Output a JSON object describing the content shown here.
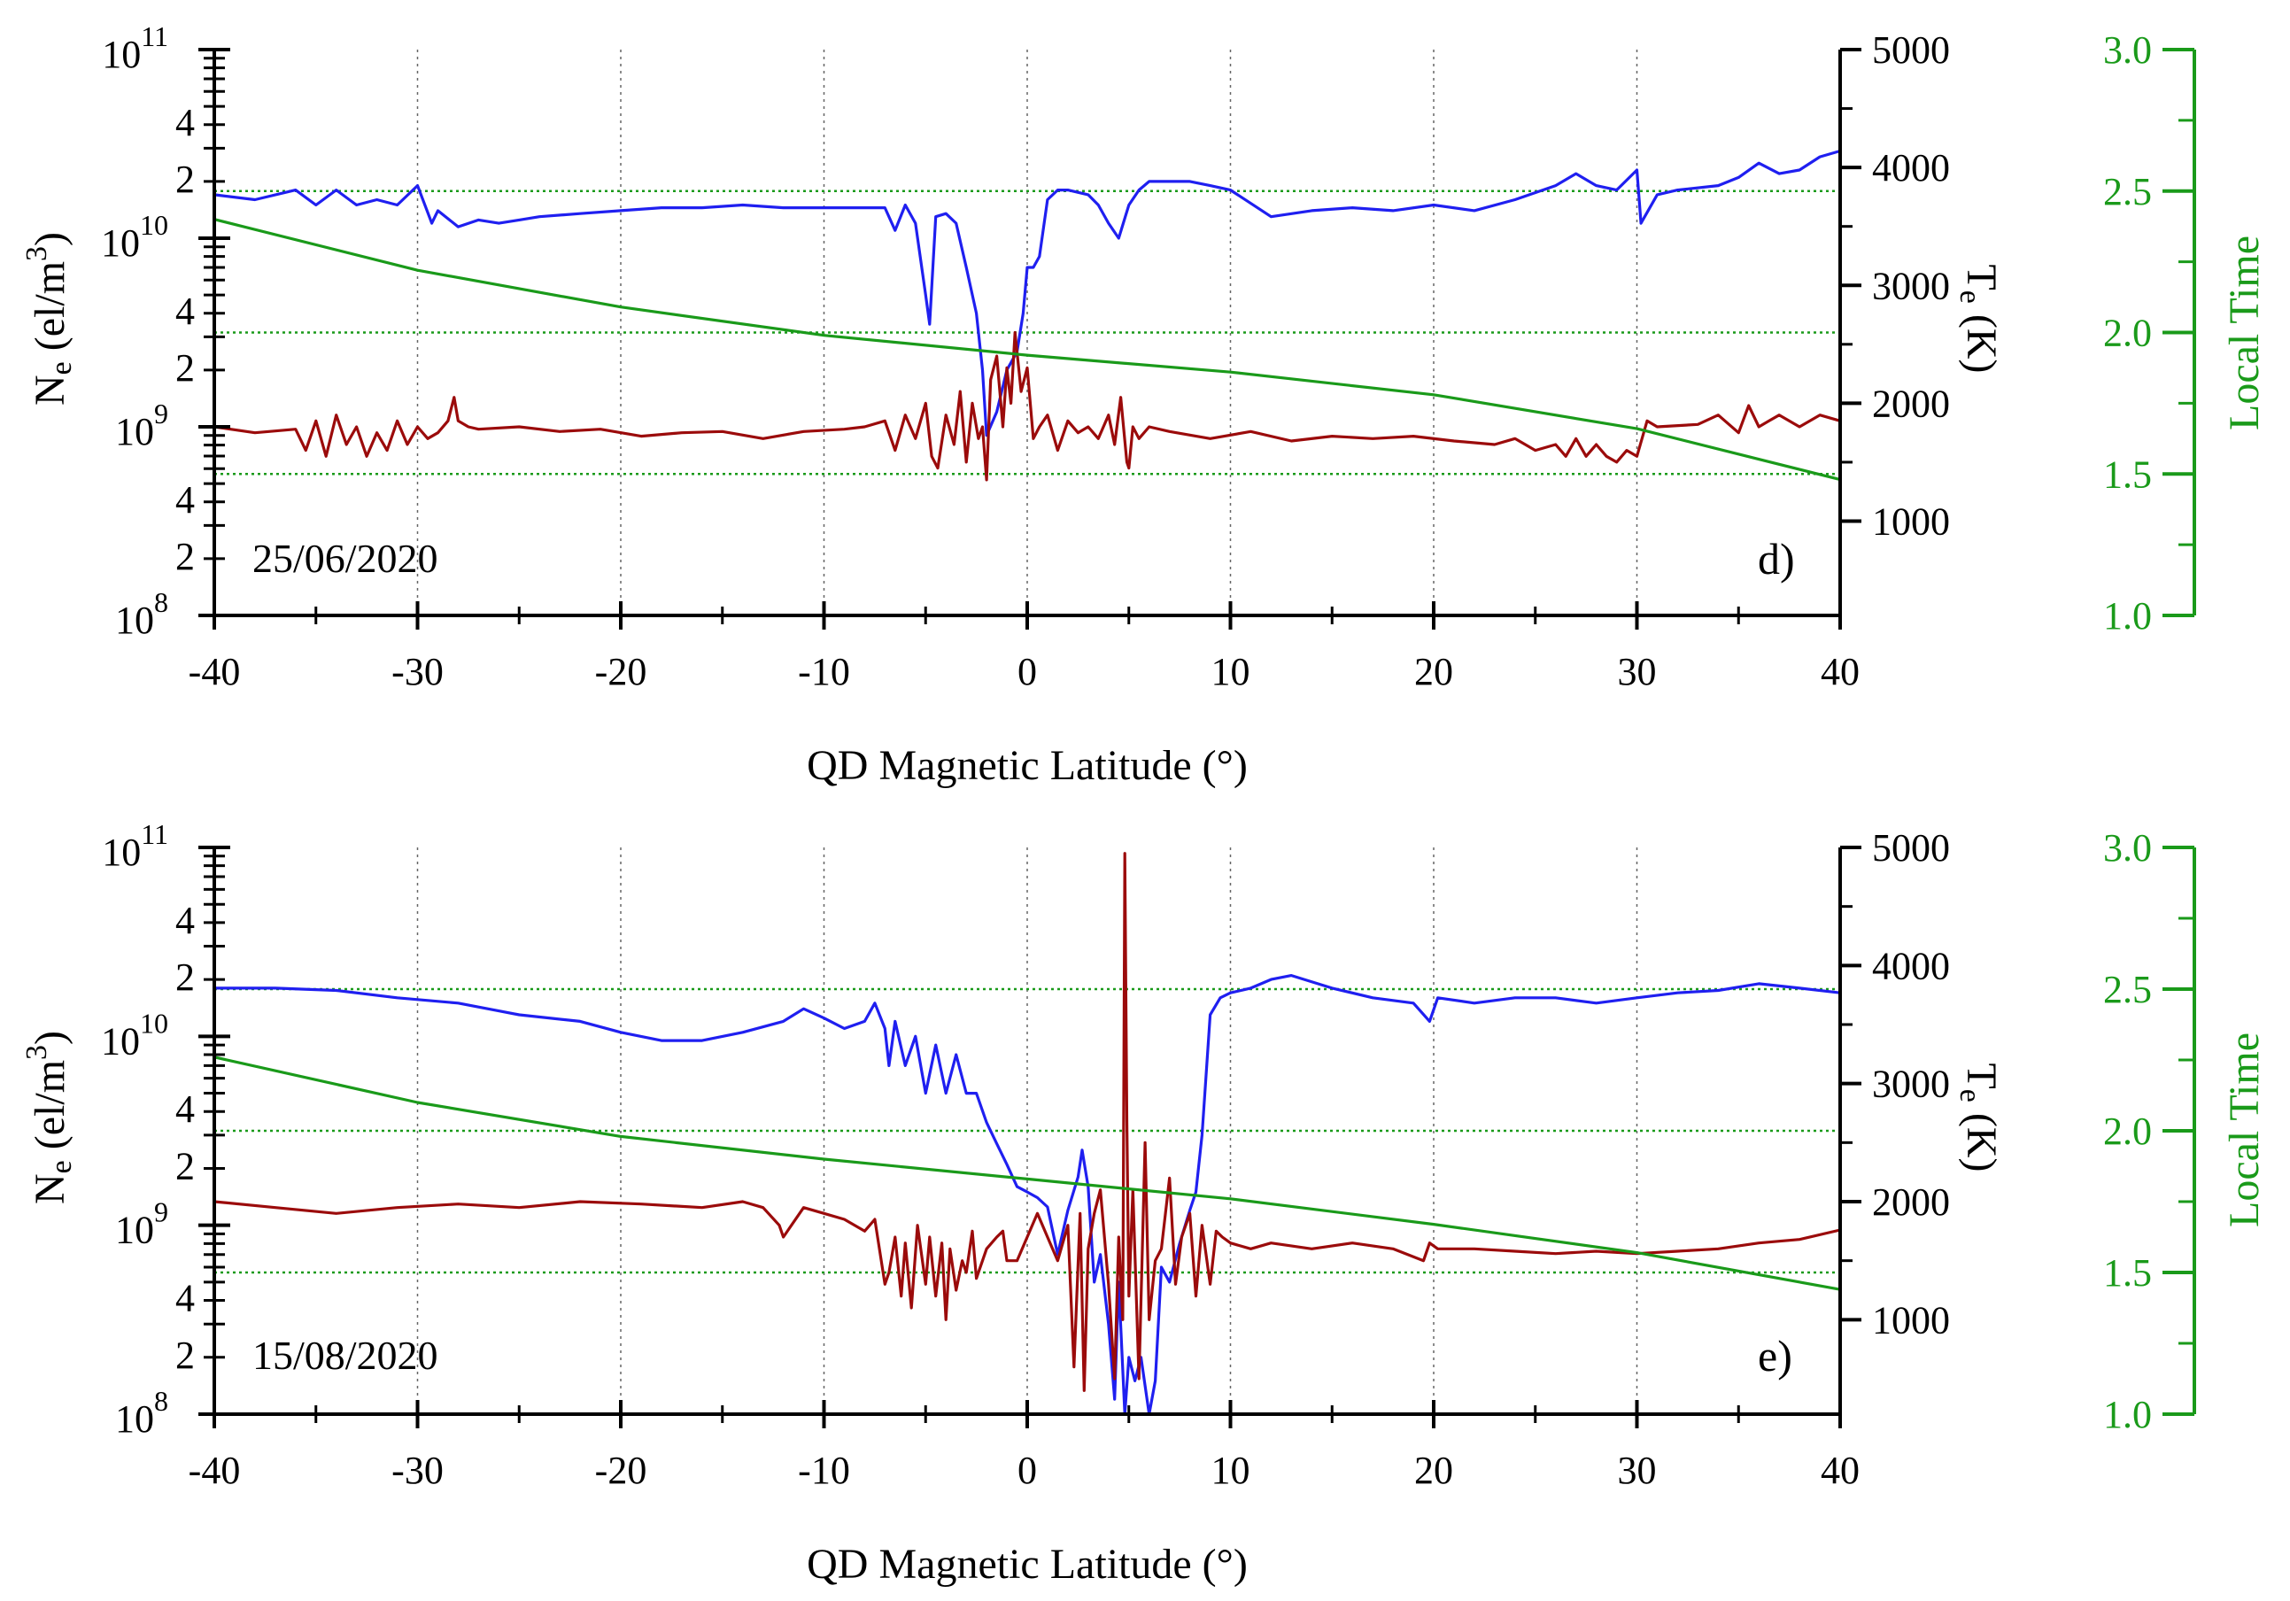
{
  "colors": {
    "ne": "#1f1ff0",
    "te": "#9b0b0b",
    "lt": "#1a9a1a",
    "grid": "#666666",
    "axis": "#000000"
  },
  "chart_data": [
    {
      "type": "line",
      "panel_label": "d)",
      "date": "25/06/2020",
      "xlabel": "QD Magnetic Latitude (°)",
      "xlim": [
        -40,
        40
      ],
      "xticks": [
        -40,
        -30,
        -20,
        -10,
        0,
        10,
        20,
        30,
        40
      ],
      "xtick_labels": [
        "-40",
        "-30",
        "-20",
        "-10",
        "0",
        "10",
        "20",
        "30",
        "40"
      ],
      "left_axis": {
        "label_main": "N",
        "label_sub": "e",
        "label_rest": " (el/m",
        "label_sup": "3",
        "label_end": ")",
        "scale": "log",
        "ylim": [
          100000000.0,
          100000000000.0
        ],
        "decade_labels": [
          {
            "base": "10",
            "exp": "8",
            "value": 100000000.0
          },
          {
            "base": "10",
            "exp": "9",
            "value": 1000000000.0
          },
          {
            "base": "10",
            "exp": "10",
            "value": 10000000000.0
          },
          {
            "base": "10",
            "exp": "11",
            "value": 100000000000.0
          }
        ],
        "minor_labels": [
          "2",
          "4"
        ]
      },
      "right_axis": {
        "label_main": "T",
        "label_sub": "e",
        "label_rest": " (K)",
        "ylim": [
          200,
          5000
        ],
        "ticks": [
          1000,
          2000,
          3000,
          4000,
          5000
        ],
        "tick_labels": [
          "1000",
          "2000",
          "3000",
          "4000",
          "5000"
        ]
      },
      "lt_axis": {
        "label": "Local Time",
        "ylim": [
          1.0,
          3.0
        ],
        "ticks": [
          1.0,
          1.5,
          2.0,
          2.5,
          3.0
        ],
        "tick_labels": [
          "1.0",
          "1.5",
          "2.0",
          "2.5",
          "3.0"
        ],
        "reference_lines": [
          1.5,
          2.0,
          2.5
        ]
      },
      "series": [
        {
          "name": "Ne",
          "axis": "left",
          "x": [
            -40,
            -38,
            -36,
            -35,
            -34,
            -33,
            -32,
            -31,
            -30,
            -29.3,
            -29,
            -28,
            -27,
            -26,
            -25,
            -24,
            -22,
            -20,
            -18,
            -16,
            -14,
            -12,
            -10,
            -8,
            -7,
            -6.5,
            -6,
            -5.5,
            -5,
            -4.8,
            -4.5,
            -4,
            -3.5,
            -3,
            -2.5,
            -2.2,
            -2,
            -1.5,
            -1,
            -0.5,
            -0.2,
            0,
            0.3,
            0.6,
            1,
            1.5,
            2,
            3,
            3.5,
            4,
            4.5,
            5,
            5.5,
            6,
            7,
            8,
            9,
            10,
            12,
            14,
            16,
            18,
            20,
            22,
            24,
            26,
            27,
            28,
            29,
            30,
            30.2,
            31,
            32,
            34,
            35,
            36,
            37,
            38,
            39,
            40
          ],
          "y": [
            17000000000.0,
            16000000000.0,
            18000000000.0,
            15000000000.0,
            18000000000.0,
            15000000000.0,
            16000000000.0,
            15000000000.0,
            19000000000.0,
            12000000000.0,
            14000000000.0,
            11500000000.0,
            12500000000.0,
            12000000000.0,
            12500000000.0,
            13000000000.0,
            13500000000.0,
            14000000000.0,
            14500000000.0,
            14500000000.0,
            15000000000.0,
            14500000000.0,
            14500000000.0,
            14500000000.0,
            14500000000.0,
            11000000000.0,
            15000000000.0,
            12000000000.0,
            5000000000.0,
            3500000000.0,
            13000000000.0,
            13500000000.0,
            12000000000.0,
            7000000000.0,
            4000000000.0,
            2000000000.0,
            900000000.0,
            1200000000.0,
            2000000000.0,
            2500000000.0,
            4000000000.0,
            7000000000.0,
            7000000000.0,
            8000000000.0,
            16000000000.0,
            18000000000.0,
            18000000000.0,
            17000000000.0,
            15000000000.0,
            12000000000.0,
            10000000000.0,
            15000000000.0,
            18000000000.0,
            20000000000.0,
            20000000000.0,
            20000000000.0,
            19000000000.0,
            18000000000.0,
            13000000000.0,
            14000000000.0,
            14500000000.0,
            14000000000.0,
            15000000000.0,
            14000000000.0,
            16000000000.0,
            19000000000.0,
            22000000000.0,
            19000000000.0,
            18000000000.0,
            23000000000.0,
            12000000000.0,
            17000000000.0,
            18000000000.0,
            19000000000.0,
            21000000000.0,
            25000000000.0,
            22000000000.0,
            23000000000.0,
            27000000000.0,
            29000000000.0
          ]
        },
        {
          "name": "Te",
          "axis": "right",
          "x": [
            -40,
            -38,
            -36,
            -35.5,
            -35,
            -34.5,
            -34,
            -33.5,
            -33,
            -32.5,
            -32,
            -31.5,
            -31,
            -30.5,
            -30,
            -29.5,
            -29,
            -28.5,
            -28.2,
            -28,
            -27.5,
            -27,
            -25,
            -23,
            -21,
            -19,
            -17,
            -15,
            -13,
            -11,
            -9,
            -8,
            -7,
            -6.5,
            -6,
            -5.5,
            -5,
            -4.7,
            -4.4,
            -4,
            -3.6,
            -3.3,
            -3,
            -2.7,
            -2.4,
            -2.2,
            -2,
            -1.8,
            -1.5,
            -1.2,
            -1,
            -0.8,
            -0.6,
            -0.3,
            0,
            0.3,
            0.6,
            1,
            1.5,
            2,
            2.5,
            3,
            3.5,
            4,
            4.3,
            4.6,
            4.9,
            5,
            5.2,
            5.5,
            6,
            7,
            9,
            11,
            13,
            15,
            17,
            19,
            21,
            23,
            24,
            25,
            26,
            26.5,
            27,
            27.5,
            28,
            28.5,
            29,
            29.5,
            30,
            30.5,
            31,
            33,
            34,
            35,
            35.5,
            36,
            36.5,
            37,
            38,
            39,
            40
          ],
          "y": [
            1800,
            1750,
            1780,
            1600,
            1850,
            1550,
            1900,
            1650,
            1800,
            1550,
            1750,
            1600,
            1850,
            1650,
            1800,
            1700,
            1750,
            1850,
            2050,
            1850,
            1800,
            1780,
            1800,
            1760,
            1780,
            1720,
            1750,
            1760,
            1700,
            1760,
            1780,
            1800,
            1850,
            1600,
            1900,
            1700,
            2000,
            1550,
            1450,
            1900,
            1650,
            2100,
            1500,
            2000,
            1700,
            1800,
            1350,
            2200,
            2400,
            1800,
            2300,
            2000,
            2600,
            2100,
            2300,
            1700,
            1800,
            1900,
            1600,
            1850,
            1750,
            1800,
            1700,
            1900,
            1650,
            2050,
            1500,
            1450,
            1800,
            1700,
            1800,
            1760,
            1700,
            1760,
            1680,
            1720,
            1700,
            1720,
            1680,
            1650,
            1700,
            1600,
            1650,
            1550,
            1700,
            1550,
            1650,
            1550,
            1500,
            1600,
            1550,
            1850,
            1800,
            1820,
            1900,
            1750,
            1980,
            1800,
            1850,
            1900,
            1800,
            1900,
            1850
          ]
        },
        {
          "name": "Local Time",
          "axis": "lt",
          "x": [
            -40,
            -30,
            -20,
            -10,
            0,
            10,
            20,
            30,
            40
          ],
          "y": [
            2.4,
            2.22,
            2.09,
            1.99,
            1.92,
            1.86,
            1.78,
            1.66,
            1.48
          ]
        }
      ]
    },
    {
      "type": "line",
      "panel_label": "e)",
      "date": "15/08/2020",
      "xlabel": "QD Magnetic Latitude (°)",
      "xlim": [
        -40,
        40
      ],
      "xticks": [
        -40,
        -30,
        -20,
        -10,
        0,
        10,
        20,
        30,
        40
      ],
      "xtick_labels": [
        "-40",
        "-30",
        "-20",
        "-10",
        "0",
        "10",
        "20",
        "30",
        "40"
      ],
      "left_axis": {
        "label_main": "N",
        "label_sub": "e",
        "label_rest": " (el/m",
        "label_sup": "3",
        "label_end": ")",
        "scale": "log",
        "ylim": [
          100000000.0,
          100000000000.0
        ],
        "decade_labels": [
          {
            "base": "10",
            "exp": "8",
            "value": 100000000.0
          },
          {
            "base": "10",
            "exp": "9",
            "value": 1000000000.0
          },
          {
            "base": "10",
            "exp": "10",
            "value": 10000000000.0
          },
          {
            "base": "10",
            "exp": "11",
            "value": 100000000000.0
          }
        ],
        "minor_labels": [
          "2",
          "4"
        ]
      },
      "right_axis": {
        "label_main": "T",
        "label_sub": "e",
        "label_rest": " (K)",
        "ylim": [
          200,
          5000
        ],
        "ticks": [
          1000,
          2000,
          3000,
          4000,
          5000
        ],
        "tick_labels": [
          "1000",
          "2000",
          "3000",
          "4000",
          "5000"
        ]
      },
      "lt_axis": {
        "label": "Local Time",
        "ylim": [
          1.0,
          3.0
        ],
        "ticks": [
          1.0,
          1.5,
          2.0,
          2.5,
          3.0
        ],
        "tick_labels": [
          "1.0",
          "1.5",
          "2.0",
          "2.5",
          "3.0"
        ],
        "reference_lines": [
          1.5,
          2.0,
          2.5
        ]
      },
      "series": [
        {
          "name": "Ne",
          "axis": "left",
          "x": [
            -40,
            -37,
            -34,
            -31,
            -28,
            -25,
            -22,
            -20,
            -18,
            -16,
            -14,
            -12,
            -11,
            -10,
            -9,
            -8,
            -7.5,
            -7,
            -6.8,
            -6.5,
            -6,
            -5.5,
            -5,
            -4.5,
            -4,
            -3.5,
            -3,
            -2.5,
            -2,
            -1.5,
            -1,
            -0.5,
            0,
            0.5,
            1,
            1.5,
            2,
            2.5,
            2.7,
            3,
            3.3,
            3.6,
            4,
            4.3,
            4.5,
            4.8,
            5,
            5.3,
            5.6,
            6,
            6.3,
            6.6,
            7,
            7.5,
            8,
            8.3,
            8.6,
            9,
            9.5,
            10,
            11,
            12,
            13,
            15,
            17,
            19,
            19.8,
            20.2,
            22,
            24,
            26,
            28,
            30,
            32,
            34,
            36,
            38,
            40
          ],
          "y": [
            18000000000.0,
            18000000000.0,
            17500000000.0,
            16000000000.0,
            15000000000.0,
            13000000000.0,
            12000000000.0,
            10500000000.0,
            9500000000.0,
            9500000000.0,
            10500000000.0,
            12000000000.0,
            14000000000.0,
            12500000000.0,
            11000000000.0,
            12000000000.0,
            15000000000.0,
            11000000000.0,
            7000000000.0,
            12000000000.0,
            7000000000.0,
            10000000000.0,
            5000000000.0,
            9000000000.0,
            5000000000.0,
            8000000000.0,
            5000000000.0,
            5000000000.0,
            3500000000.0,
            2700000000.0,
            2100000000.0,
            1600000000.0,
            1500000000.0,
            1400000000.0,
            1250000000.0,
            700000000.0,
            1200000000.0,
            1800000000.0,
            2500000000.0,
            1600000000.0,
            500000000.0,
            700000000.0,
            300000000.0,
            120000000.0,
            500000000.0,
            100000000.0,
            200000000.0,
            150000000.0,
            200000000.0,
            100000000.0,
            150000000.0,
            600000000.0,
            500000000.0,
            800000000.0,
            1200000000.0,
            1500000000.0,
            3000000000.0,
            13000000000.0,
            16000000000.0,
            17000000000.0,
            18000000000.0,
            20000000000.0,
            21000000000.0,
            18000000000.0,
            16000000000.0,
            15000000000.0,
            12000000000.0,
            16000000000.0,
            15000000000.0,
            16000000000.0,
            16000000000.0,
            15000000000.0,
            16000000000.0,
            17000000000.0,
            17500000000.0,
            19000000000.0,
            18000000000.0,
            17000000000.0
          ]
        },
        {
          "name": "Te",
          "axis": "right",
          "x": [
            -40,
            -37,
            -34,
            -31,
            -28,
            -25,
            -22,
            -19,
            -16,
            -14,
            -13,
            -12.2,
            -12,
            -11,
            -10,
            -9,
            -8,
            -7.5,
            -7,
            -6.8,
            -6.5,
            -6.2,
            -6,
            -5.7,
            -5.4,
            -5,
            -4.8,
            -4.5,
            -4.2,
            -4,
            -3.8,
            -3.5,
            -3.2,
            -3,
            -2.7,
            -2.5,
            -2,
            -1.5,
            -1.2,
            -1,
            -0.5,
            0,
            0.5,
            1,
            1.5,
            2,
            2.3,
            2.6,
            2.8,
            3,
            3.3,
            3.6,
            4,
            4.3,
            4.5,
            4.7,
            4.8,
            4.9,
            5,
            5.2,
            5.5,
            5.8,
            6,
            6.3,
            6.6,
            7,
            7.3,
            7.6,
            8,
            8.3,
            8.6,
            9,
            9.3,
            9.6,
            10,
            11,
            12,
            14,
            16,
            18,
            19.5,
            19.8,
            20.2,
            22,
            24,
            26,
            28,
            30,
            32,
            34,
            36,
            38,
            40
          ],
          "y": [
            2000,
            1950,
            1900,
            1950,
            1980,
            1950,
            2000,
            1980,
            1950,
            2000,
            1950,
            1800,
            1700,
            1950,
            1900,
            1850,
            1750,
            1850,
            1300,
            1400,
            1700,
            1200,
            1650,
            1100,
            1800,
            1300,
            1700,
            1200,
            1650,
            1000,
            1600,
            1250,
            1500,
            1400,
            1750,
            1350,
            1600,
            1700,
            1750,
            1500,
            1500,
            1700,
            1900,
            1700,
            1500,
            1800,
            600,
            1900,
            400,
            1600,
            1900,
            2100,
            1300,
            500,
            1700,
            1000,
            4950,
            2700,
            1200,
            2100,
            500,
            2500,
            1000,
            1500,
            1600,
            2200,
            1300,
            1700,
            1900,
            1200,
            1800,
            1300,
            1750,
            1700,
            1650,
            1600,
            1650,
            1600,
            1650,
            1600,
            1500,
            1650,
            1600,
            1600,
            1580,
            1560,
            1580,
            1560,
            1580,
            1600,
            1650,
            1680,
            1760
          ]
        },
        {
          "name": "Local Time",
          "axis": "lt",
          "x": [
            -40,
            -30,
            -20,
            -10,
            0,
            10,
            20,
            30,
            40
          ],
          "y": [
            2.26,
            2.1,
            1.98,
            1.9,
            1.83,
            1.76,
            1.67,
            1.57,
            1.44
          ]
        }
      ]
    }
  ]
}
